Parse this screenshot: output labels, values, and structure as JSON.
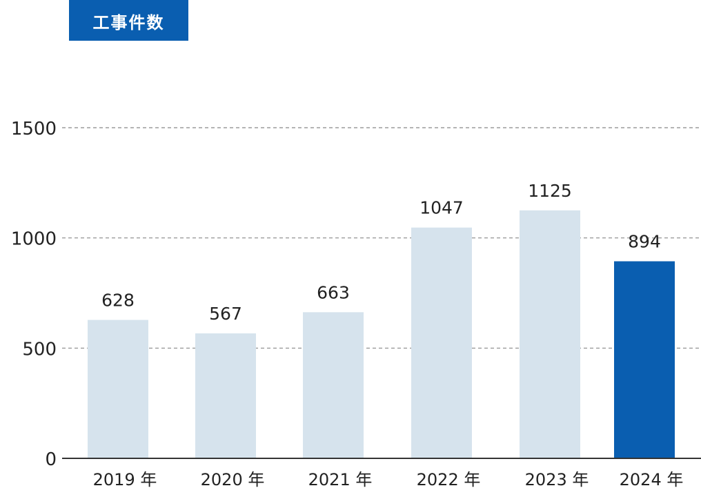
{
  "chart_data": {
    "type": "bar",
    "title": "工事件数",
    "categories": [
      "2019 年",
      "2020 年",
      "2021 年",
      "2022 年",
      "2023 年",
      "2024 年"
    ],
    "values": [
      628,
      567,
      663,
      1047,
      1125,
      894
    ],
    "value_labels": [
      "628",
      "567",
      "663",
      "1047",
      "1125",
      "894"
    ],
    "yticks": [
      0,
      500,
      1000,
      1500
    ],
    "ytick_labels": [
      "0",
      "500",
      "1000",
      "1500"
    ],
    "ylim": [
      0,
      1500
    ],
    "xlabel": "",
    "ylabel": "",
    "grid": "horizontal-dashed",
    "highlight_index": 5,
    "colors": {
      "bar": "#d6e3ed",
      "highlight_bar": "#0a5eb0",
      "highlight_label": "#0a5eb0",
      "grid": "#888888",
      "axis": "#333333",
      "title_bg": "#0a5eb0",
      "title_text": "#ffffff"
    }
  }
}
